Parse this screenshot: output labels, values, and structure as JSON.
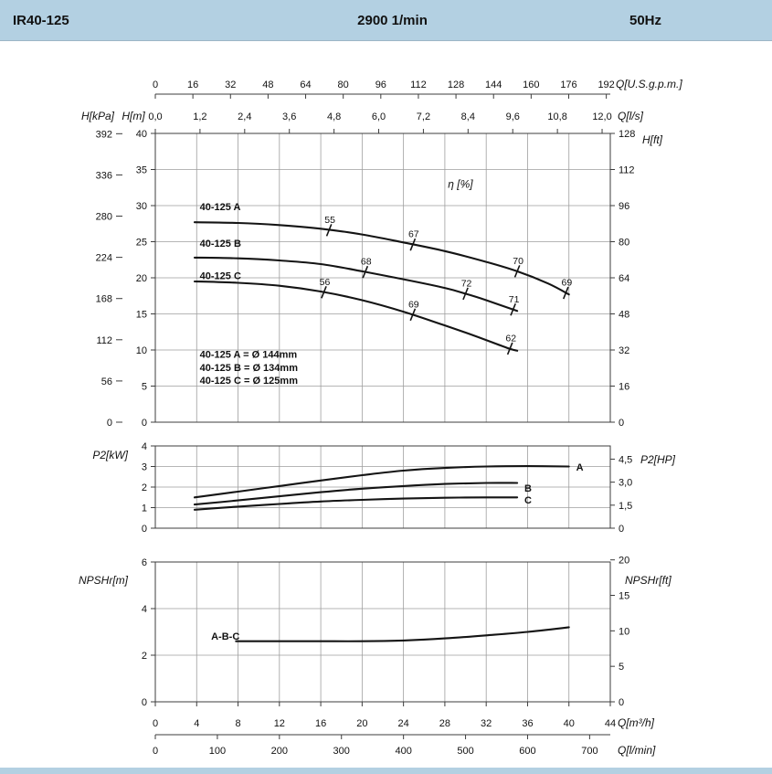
{
  "header": {
    "model": "IR40-125",
    "speed": "2900 1/min",
    "frequency": "50Hz"
  },
  "colors": {
    "header_bg": "#b3d0e2",
    "footer_bg": "#b3d0e2",
    "page_bg": "#ffffff",
    "text": "#111111",
    "curve": "#141414",
    "grid": "#9e9e9e",
    "frame": "#3c3c3c",
    "axis": "#3c3c3c"
  },
  "chart_data": {
    "type": "line",
    "title": "IR40-125 pump performance curves, 2900 1/min, 50Hz",
    "x_range_m3h": [
      0,
      44
    ],
    "x_axes": {
      "top": [
        {
          "name": "usgpm",
          "label": "Q[U.S.g.p.m.]",
          "equiv_max": 193.7,
          "tick_values": [
            0,
            16,
            32,
            48,
            64,
            80,
            96,
            112,
            128,
            144,
            160,
            176,
            192
          ],
          "tick_labels": [
            "0",
            "16",
            "32",
            "48",
            "64",
            "80",
            "96",
            "112",
            "128",
            "144",
            "160",
            "176",
            "192"
          ]
        },
        {
          "name": "ls",
          "label": "Q[l/s]",
          "equiv_max": 12.22,
          "tick_values": [
            0,
            1.2,
            2.4,
            3.6,
            4.8,
            6.0,
            7.2,
            8.4,
            9.6,
            10.8,
            12.0
          ],
          "tick_labels": [
            "0,0",
            "1,2",
            "2,4",
            "3,6",
            "4,8",
            "6,0",
            "7,2",
            "8,4",
            "9,6",
            "10,8",
            "12,0"
          ]
        }
      ],
      "bottom": [
        {
          "name": "m3h",
          "label": "Q[m³/h]",
          "equiv_max": 44,
          "tick_values": [
            0,
            4,
            8,
            12,
            16,
            20,
            24,
            28,
            32,
            36,
            40,
            44
          ],
          "tick_labels": [
            "0",
            "4",
            "8",
            "12",
            "16",
            "20",
            "24",
            "28",
            "32",
            "36",
            "40",
            "44"
          ]
        },
        {
          "name": "lmin",
          "label": "Q[l/min]",
          "equiv_max": 733.3,
          "tick_values": [
            0,
            100,
            200,
            300,
            400,
            500,
            600,
            700
          ],
          "tick_labels": [
            "0",
            "100",
            "200",
            "300",
            "400",
            "500",
            "600",
            "700"
          ]
        }
      ]
    },
    "panels": [
      {
        "name": "head",
        "ylim": [
          0,
          40
        ],
        "grid_step": 5,
        "left_axes": [
          {
            "label": "H[kPa]",
            "equiv_max": 392.4,
            "tick_values": [
              0,
              56,
              112,
              168,
              224,
              280,
              336,
              392
            ],
            "tick_labels": [
              "0",
              "56",
              "112",
              "168",
              "224",
              "280",
              "336",
              "392"
            ]
          },
          {
            "label": "H[m]",
            "equiv_max": 40,
            "tick_values": [
              0,
              5,
              10,
              15,
              20,
              25,
              30,
              35,
              40
            ],
            "tick_labels": [
              "0",
              "5",
              "10",
              "15",
              "20",
              "25",
              "30",
              "35",
              "40"
            ]
          }
        ],
        "right_axes": [
          {
            "label": "H[ft]",
            "equiv_max": 128,
            "tick_values": [
              0,
              16,
              32,
              48,
              64,
              80,
              96,
              112,
              128
            ],
            "tick_labels": [
              "0",
              "16",
              "32",
              "48",
              "64",
              "80",
              "96",
              "112",
              "128"
            ]
          }
        ],
        "eta_label": {
          "text": "η [%]",
          "pos": [
            28.3,
            33.0
          ]
        },
        "series": [
          {
            "name": "40-125 A",
            "label_pos": [
              4.3,
              29.9
            ],
            "points": [
              [
                3.8,
                27.7
              ],
              [
                8,
                27.6
              ],
              [
                12,
                27.3
              ],
              [
                16,
                26.8
              ],
              [
                20,
                26.0
              ],
              [
                24,
                24.9
              ],
              [
                28,
                23.7
              ],
              [
                32,
                22.2
              ],
              [
                35,
                20.9
              ],
              [
                38,
                19.2
              ],
              [
                40,
                17.7
              ]
            ],
            "eff_ticks": [
              {
                "q": 16.8,
                "h": 26.6,
                "label": "55"
              },
              {
                "q": 24.9,
                "h": 24.6,
                "label": "67"
              },
              {
                "q": 35.0,
                "h": 20.9,
                "label": "70"
              },
              {
                "q": 39.7,
                "h": 17.9,
                "label": "69"
              }
            ]
          },
          {
            "name": "40-125 B",
            "label_pos": [
              4.3,
              24.8
            ],
            "points": [
              [
                3.8,
                22.8
              ],
              [
                8,
                22.7
              ],
              [
                12,
                22.4
              ],
              [
                16,
                21.9
              ],
              [
                20,
                20.9
              ],
              [
                24,
                19.8
              ],
              [
                28,
                18.6
              ],
              [
                30,
                17.8
              ],
              [
                32,
                16.9
              ],
              [
                35,
                15.4
              ]
            ],
            "eff_ticks": [
              {
                "q": 20.3,
                "h": 20.8,
                "label": "68"
              },
              {
                "q": 30.0,
                "h": 17.8,
                "label": "72"
              },
              {
                "q": 34.6,
                "h": 15.6,
                "label": "71"
              }
            ]
          },
          {
            "name": "40-125 C",
            "label_pos": [
              4.3,
              20.3
            ],
            "points": [
              [
                3.8,
                19.5
              ],
              [
                8,
                19.3
              ],
              [
                12,
                18.9
              ],
              [
                16,
                18.1
              ],
              [
                20,
                16.9
              ],
              [
                24,
                15.3
              ],
              [
                28,
                13.4
              ],
              [
                31,
                11.9
              ],
              [
                34,
                10.3
              ],
              [
                35,
                9.9
              ]
            ],
            "eff_ticks": [
              {
                "q": 16.3,
                "h": 18.0,
                "label": "56"
              },
              {
                "q": 24.9,
                "h": 14.9,
                "label": "69"
              },
              {
                "q": 34.3,
                "h": 10.2,
                "label": "62"
              }
            ]
          }
        ],
        "annotations": [
          {
            "text": "40-125 A = Ø 144mm",
            "pos": [
              4.3,
              9.4
            ]
          },
          {
            "text": "40-125 B = Ø 134mm",
            "pos": [
              4.3,
              7.6
            ]
          },
          {
            "text": "40-125 C = Ø 125mm",
            "pos": [
              4.3,
              5.8
            ]
          }
        ]
      },
      {
        "name": "power",
        "ylim": [
          0,
          4
        ],
        "grid_step": 1,
        "left_axes": [
          {
            "label": "P2[kW]",
            "equiv_max": 4,
            "tick_values": [
              0,
              1,
              2,
              3,
              4
            ],
            "tick_labels": [
              "0",
              "1",
              "2",
              "3",
              "4"
            ]
          }
        ],
        "right_axes": [
          {
            "label": "P2[HP]",
            "equiv_max": 5.36,
            "tick_values": [
              0,
              1.5,
              3.0,
              4.5
            ],
            "tick_labels": [
              "0",
              "1,5",
              "3,0",
              "4,5"
            ]
          }
        ],
        "series": [
          {
            "name": "A",
            "label_pos": [
              40.7,
              2.98
            ],
            "points": [
              [
                3.8,
                1.5
              ],
              [
                8,
                1.78
              ],
              [
                12,
                2.05
              ],
              [
                16,
                2.32
              ],
              [
                20,
                2.58
              ],
              [
                24,
                2.8
              ],
              [
                28,
                2.93
              ],
              [
                32,
                3.0
              ],
              [
                36,
                3.02
              ],
              [
                40,
                3.0
              ]
            ],
            "eff_ticks": []
          },
          {
            "name": "B",
            "label_pos": [
              35.7,
              1.95
            ],
            "points": [
              [
                3.8,
                1.15
              ],
              [
                8,
                1.35
              ],
              [
                12,
                1.55
              ],
              [
                16,
                1.75
              ],
              [
                20,
                1.92
              ],
              [
                24,
                2.05
              ],
              [
                28,
                2.15
              ],
              [
                32,
                2.2
              ],
              [
                35,
                2.2
              ]
            ],
            "eff_ticks": []
          },
          {
            "name": "C",
            "label_pos": [
              35.7,
              1.38
            ],
            "points": [
              [
                3.8,
                0.9
              ],
              [
                8,
                1.05
              ],
              [
                12,
                1.18
              ],
              [
                16,
                1.3
              ],
              [
                20,
                1.38
              ],
              [
                24,
                1.44
              ],
              [
                28,
                1.48
              ],
              [
                32,
                1.5
              ],
              [
                35,
                1.5
              ]
            ],
            "eff_ticks": []
          }
        ],
        "annotations": []
      },
      {
        "name": "npshr",
        "ylim": [
          0,
          6
        ],
        "grid_step": 2,
        "left_axes": [
          {
            "label": "NPSHr[m]",
            "equiv_max": 6,
            "tick_values": [
              0,
              2,
              4,
              6
            ],
            "tick_labels": [
              "0",
              "2",
              "4",
              "6"
            ]
          }
        ],
        "right_axes": [
          {
            "label": "NPSHr[ft]",
            "equiv_max": 19.7,
            "tick_values": [
              0,
              5,
              10,
              15,
              20
            ],
            "tick_labels": [
              "0",
              "5",
              "10",
              "15",
              "20"
            ]
          }
        ],
        "series": [
          {
            "name": "A-B-C",
            "label_pos": [
              5.4,
              2.82
            ],
            "points": [
              [
                7.8,
                2.6
              ],
              [
                12,
                2.6
              ],
              [
                16,
                2.6
              ],
              [
                20,
                2.6
              ],
              [
                24,
                2.63
              ],
              [
                28,
                2.72
              ],
              [
                32,
                2.85
              ],
              [
                36,
                3.0
              ],
              [
                40,
                3.2
              ]
            ],
            "eff_ticks": []
          }
        ],
        "annotations": []
      }
    ]
  }
}
